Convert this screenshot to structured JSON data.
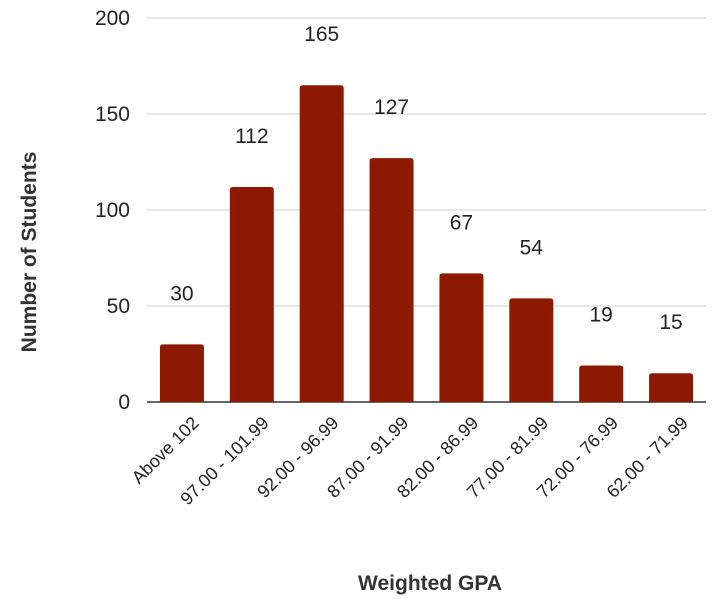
{
  "chart_data": {
    "type": "bar",
    "title": "",
    "xlabel": "Weighted GPA",
    "ylabel": "Number of Students",
    "categories": [
      "Above 102",
      "97.00 - 101.99",
      "92.00 - 96.99",
      "87.00 - 91.99",
      "82.00 - 86.99",
      "77.00 - 81.99",
      "72.00 - 76.99",
      "62.00 - 71.99"
    ],
    "values": [
      30,
      112,
      165,
      127,
      67,
      54,
      19,
      15
    ],
    "ylim": [
      0,
      200
    ],
    "yticks": [
      0,
      50,
      100,
      150,
      200
    ],
    "grid": true,
    "legend": "none",
    "bar_color": "#8b1a00"
  }
}
